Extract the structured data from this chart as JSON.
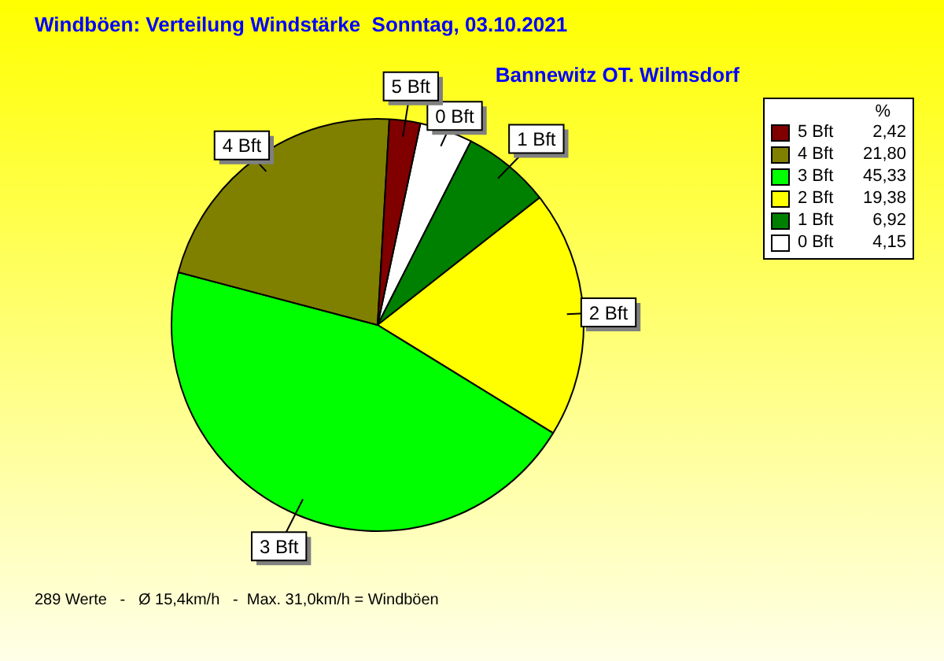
{
  "chart_data": {
    "type": "pie",
    "title": "Windböen: Verteilung Windstärke  Sonntag, 03.10.2021",
    "subtitle": "Bannewitz OT. Wilmsdorf",
    "categories": [
      "5 Bft",
      "4 Bft",
      "3 Bft",
      "2 Bft",
      "1 Bft",
      "0 Bft"
    ],
    "values": [
      2.42,
      21.8,
      45.33,
      19.38,
      6.92,
      4.15
    ],
    "value_labels": [
      "2,42",
      "21,80",
      "45,33",
      "19,38",
      "6,92",
      "4,15"
    ],
    "colors": [
      "#800000",
      "#808000",
      "#00ff00",
      "#ffff00",
      "#008000",
      "#ffffff"
    ],
    "legend": "top right",
    "legend_title": "%",
    "annotations": [
      "289 Werte   -   Ø 15,4km/h   -  Max. 31,0km/h = Windböen"
    ]
  }
}
